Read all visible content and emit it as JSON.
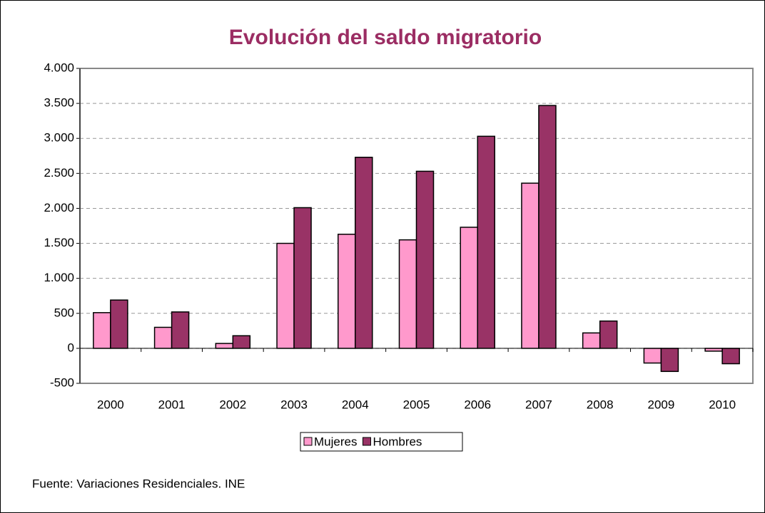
{
  "chart_data": {
    "type": "bar",
    "title": "Evolución del saldo migratorio",
    "categories": [
      "2000",
      "2001",
      "2002",
      "2003",
      "2004",
      "2005",
      "2006",
      "2007",
      "2008",
      "2009",
      "2010"
    ],
    "series": [
      {
        "name": "Mujeres",
        "color": "#ff99cc",
        "values": [
          510,
          300,
          70,
          1500,
          1630,
          1550,
          1730,
          2360,
          220,
          -210,
          -40
        ]
      },
      {
        "name": "Hombres",
        "color": "#993366",
        "values": [
          690,
          520,
          180,
          2010,
          2730,
          2530,
          3030,
          3470,
          390,
          -330,
          -220
        ]
      }
    ],
    "ylim": [
      -500,
      4000
    ],
    "yticks": [
      -500,
      0,
      500,
      {
        "value": 1000,
        "label": "1.000"
      },
      {
        "value": 1500,
        "label": "1.500"
      },
      {
        "value": 2000,
        "label": "2.000"
      },
      {
        "value": 2500,
        "label": "2.500"
      },
      {
        "value": 3000,
        "label": "3.000"
      },
      {
        "value": 3500,
        "label": "3.500"
      },
      {
        "value": 4000,
        "label": "4.000"
      }
    ],
    "grid": true,
    "legend": "bottom",
    "source": "Fuente: Variaciones Residenciales. INE"
  }
}
